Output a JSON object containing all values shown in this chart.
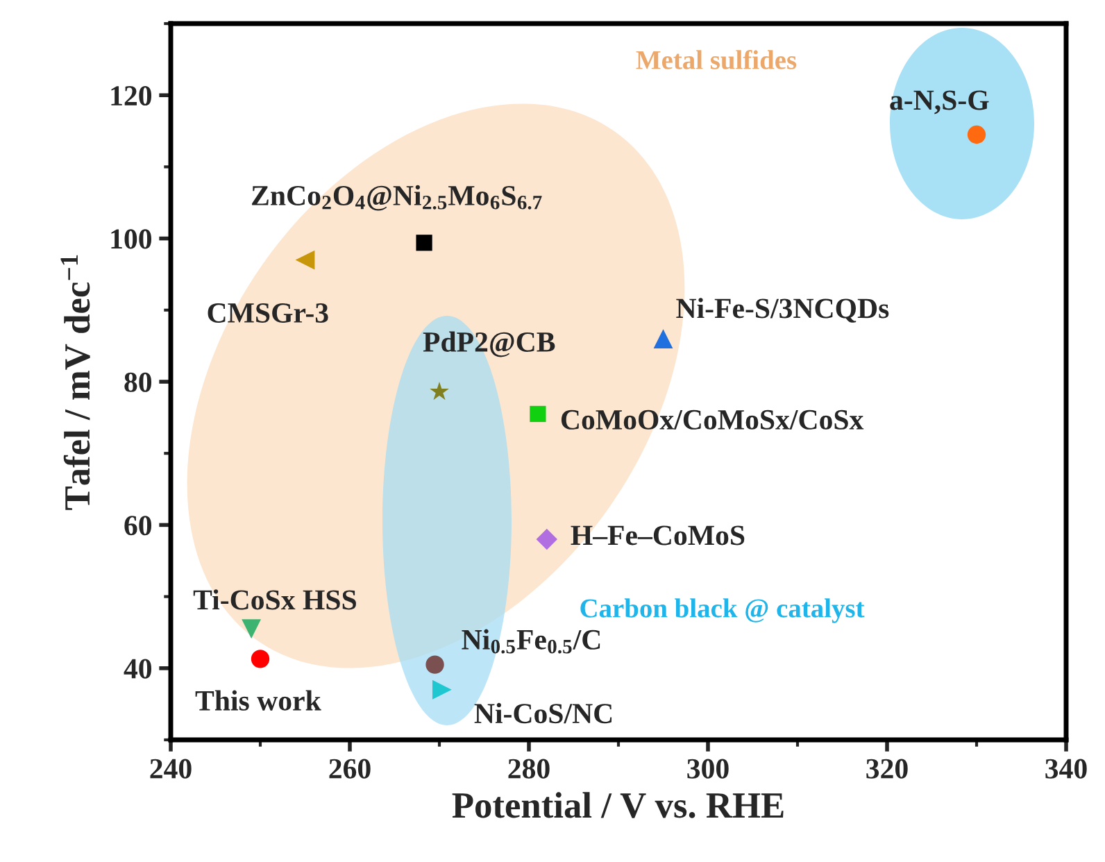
{
  "chart_data": {
    "type": "scatter",
    "xlabel": "Potential / V vs. RHE",
    "ylabel": "Tafel / mV dec$^{−1}$",
    "xlim": [
      240,
      340
    ],
    "ylim": [
      30,
      130
    ],
    "xticks": [
      240,
      260,
      280,
      300,
      320,
      340
    ],
    "yticks": [
      40,
      60,
      80,
      100,
      120
    ],
    "grid": false,
    "legend": false,
    "series": [
      {
        "name": "This work",
        "color": "#ff0000",
        "marker": "circle",
        "x": [
          250
        ],
        "values": [
          41.3
        ]
      },
      {
        "name": "Ti-CoSx HSS",
        "color": "#3cb371",
        "marker": "triangle-down",
        "x": [
          249
        ],
        "values": [
          45.5
        ]
      },
      {
        "name": "Ni$_{0.5}$Fe$_{0.5}$/C",
        "color": "#7b5050",
        "marker": "circle",
        "x": [
          269.5
        ],
        "values": [
          40.5
        ]
      },
      {
        "name": "Ni-CoS/NC",
        "color": "#1fc8d0",
        "marker": "triangle-right",
        "x": [
          270.3
        ],
        "values": [
          37
        ]
      },
      {
        "name": "PdP2@CB",
        "color": "#808020",
        "marker": "star",
        "x": [
          270
        ],
        "values": [
          78.6
        ]
      },
      {
        "name": "CoMoOx/CoMoSx/CoSx",
        "color": "#10d010",
        "marker": "square",
        "x": [
          281
        ],
        "values": [
          75.5
        ]
      },
      {
        "name": "H–Fe–CoMoS",
        "color": "#b06ee0",
        "marker": "diamond",
        "x": [
          282
        ],
        "values": [
          58
        ]
      },
      {
        "name": "Ni-Fe-S/3NCQDs",
        "color": "#2070e0",
        "marker": "triangle",
        "x": [
          295
        ],
        "values": [
          86
        ]
      },
      {
        "name": "ZnCo$_{2}$O$_{4}$@Ni$_{2.5}$Mo$_{6}$S$_{6.7}$",
        "color": "#000000",
        "marker": "square",
        "x": [
          268.3
        ],
        "values": [
          99.4
        ]
      },
      {
        "name": "CMSGr-3",
        "color": "#c8960a",
        "marker": "triangle-left",
        "x": [
          255
        ],
        "values": [
          97
        ]
      },
      {
        "name": "a-N,S-G",
        "color": "#ff6a10",
        "marker": "circle",
        "x": [
          330
        ],
        "values": [
          114.5
        ]
      }
    ],
    "annotations": [
      "Metal sulfides",
      "Carbon black @ catalyst"
    ]
  }
}
